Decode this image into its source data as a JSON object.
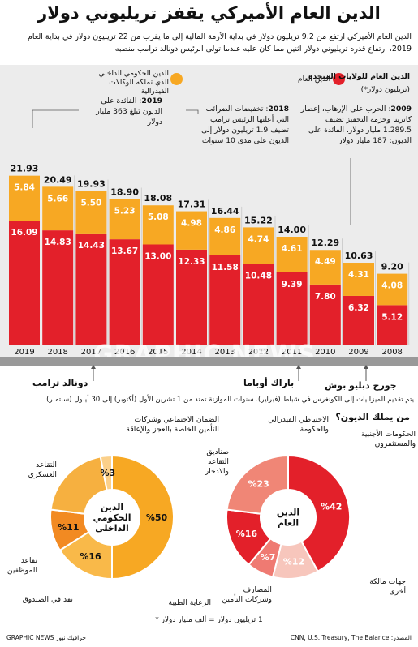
{
  "title": "الدين العام الأميركي يقفز تريليوني دولار",
  "intro": "الدين العام الأميركي ارتفع من 9.2 تريليون دولار في بداية الأزمة المالية إلى ما يقرب من 22 تريليون دولار في بداية العام 2019، ارتفاع قدره تريليوني دولار اثنين مما كان عليه عندما تولى الرئيس دونالد ترامب منصبه",
  "legend": {
    "public": "الدين العام",
    "intra": "الدين الحكومي الداخلي الذي تملكه الوكالات الفيدرالية",
    "public_color": "#e3202a",
    "intra_color": "#f7a823"
  },
  "chart_heading": "الدين العام للولايات المتحدة",
  "chart_unit": "(تريليون دولار*)",
  "annotations": {
    "a2009_year": "2009",
    "a2009_text": ": الحرب على الإرهاب، إعصار كاترينا وحزمة التحفيز تضيف 1.289.5 مليار دولار. الفائدة على الديون: 187 مليار دولار",
    "a2018_year": "2018",
    "a2018_text": ": تخفيضات الضرائب التي أعلنها الرئيس ترامب تضيف 1.9 تريليون دولار إلى الديون على مدى 10 سنوات",
    "a2019_year": "2019",
    "a2019_text": ": الفائدة على الديون تبلغ 363 مليار دولار"
  },
  "chart_data": {
    "type": "bar",
    "stacked": true,
    "categories": [
      "2019",
      "2018",
      "2017",
      "2016",
      "2015",
      "2014",
      "2013",
      "2012",
      "2011",
      "2010",
      "2009",
      "2008"
    ],
    "totals": [
      21.93,
      20.49,
      19.93,
      18.9,
      18.08,
      17.31,
      16.44,
      15.22,
      14.0,
      12.29,
      10.63,
      9.2
    ],
    "series": [
      {
        "name": "الدين العام",
        "values": [
          16.09,
          14.83,
          14.43,
          13.67,
          13.0,
          12.33,
          11.58,
          10.48,
          9.39,
          7.8,
          6.32,
          5.12
        ]
      },
      {
        "name": "الدين الحكومي الداخلي الذي تملكه الوكالات الفيدرالية",
        "values": [
          5.84,
          5.66,
          5.5,
          5.23,
          5.08,
          4.98,
          4.86,
          4.74,
          4.61,
          4.49,
          4.31,
          4.08
        ]
      }
    ],
    "ylim": [
      0,
      22
    ]
  },
  "timeline": {
    "trump": "دونالد ترامب",
    "obama": "باراك أوباما",
    "bush": "جورج دبليو بوش",
    "budget_note": "يتم تقديم الميزانيات إلى الكونغرس في شباط (فبراير). سنوات الموازنة تمتد من 1 تشرين الأول (أكتوبر) إلى 30 أيلول (سبتمبر)"
  },
  "who_owns": "من يملك الديون؟",
  "donuts": [
    {
      "center": "الدين الحكومي الداخلي",
      "slices": [
        {
          "label": "الضمان الاجتماعي وشركات التأمين الخاصة بالعجز والإعاقة",
          "value": 50,
          "pct": "%50",
          "color": "#f7a823"
        },
        {
          "label": "التقاعد العسكري",
          "value": 16,
          "pct": "%16",
          "color": "#f9b949"
        },
        {
          "label": "تقاعد الموظفين",
          "value": 11,
          "pct": "%11",
          "color": "#f28a22"
        },
        {
          "label": "نقد في الصندوق",
          "value": 20,
          "pct": "",
          "color": "#f6b040"
        },
        {
          "label": "الرعاية الطبية",
          "value": 3,
          "pct": "%3",
          "color": "#fbd08a"
        }
      ]
    },
    {
      "center": "الدين العام",
      "slices": [
        {
          "label": "الحكومات الأجنبية والمستثمرون",
          "value": 42,
          "pct": "%42",
          "color": "#e3202a"
        },
        {
          "label": "جهات مالكة أخرى",
          "value": 12,
          "pct": "%12",
          "color": "#f7c6bc"
        },
        {
          "label": "المصارف وشركات التأمين",
          "value": 7,
          "pct": "%7",
          "color": "#ef7a72"
        },
        {
          "label": "صناديق التقاعد والادخار",
          "value": 16,
          "pct": "%16",
          "color": "#e3202a"
        },
        {
          "label": "الاحتياطي الفيدرالي والحكومة",
          "value": 23,
          "pct": "%23",
          "color": "#f08676"
        }
      ]
    }
  ],
  "unit_note": "1 تريليون دولار = ألف مليار دولار *",
  "source": "المصدر: CNN, U.S. Treasury, The Balance",
  "credit": "GRAPHIC NEWS جرافيك نيوز",
  "watermark": "GRAPHIC NEWS"
}
